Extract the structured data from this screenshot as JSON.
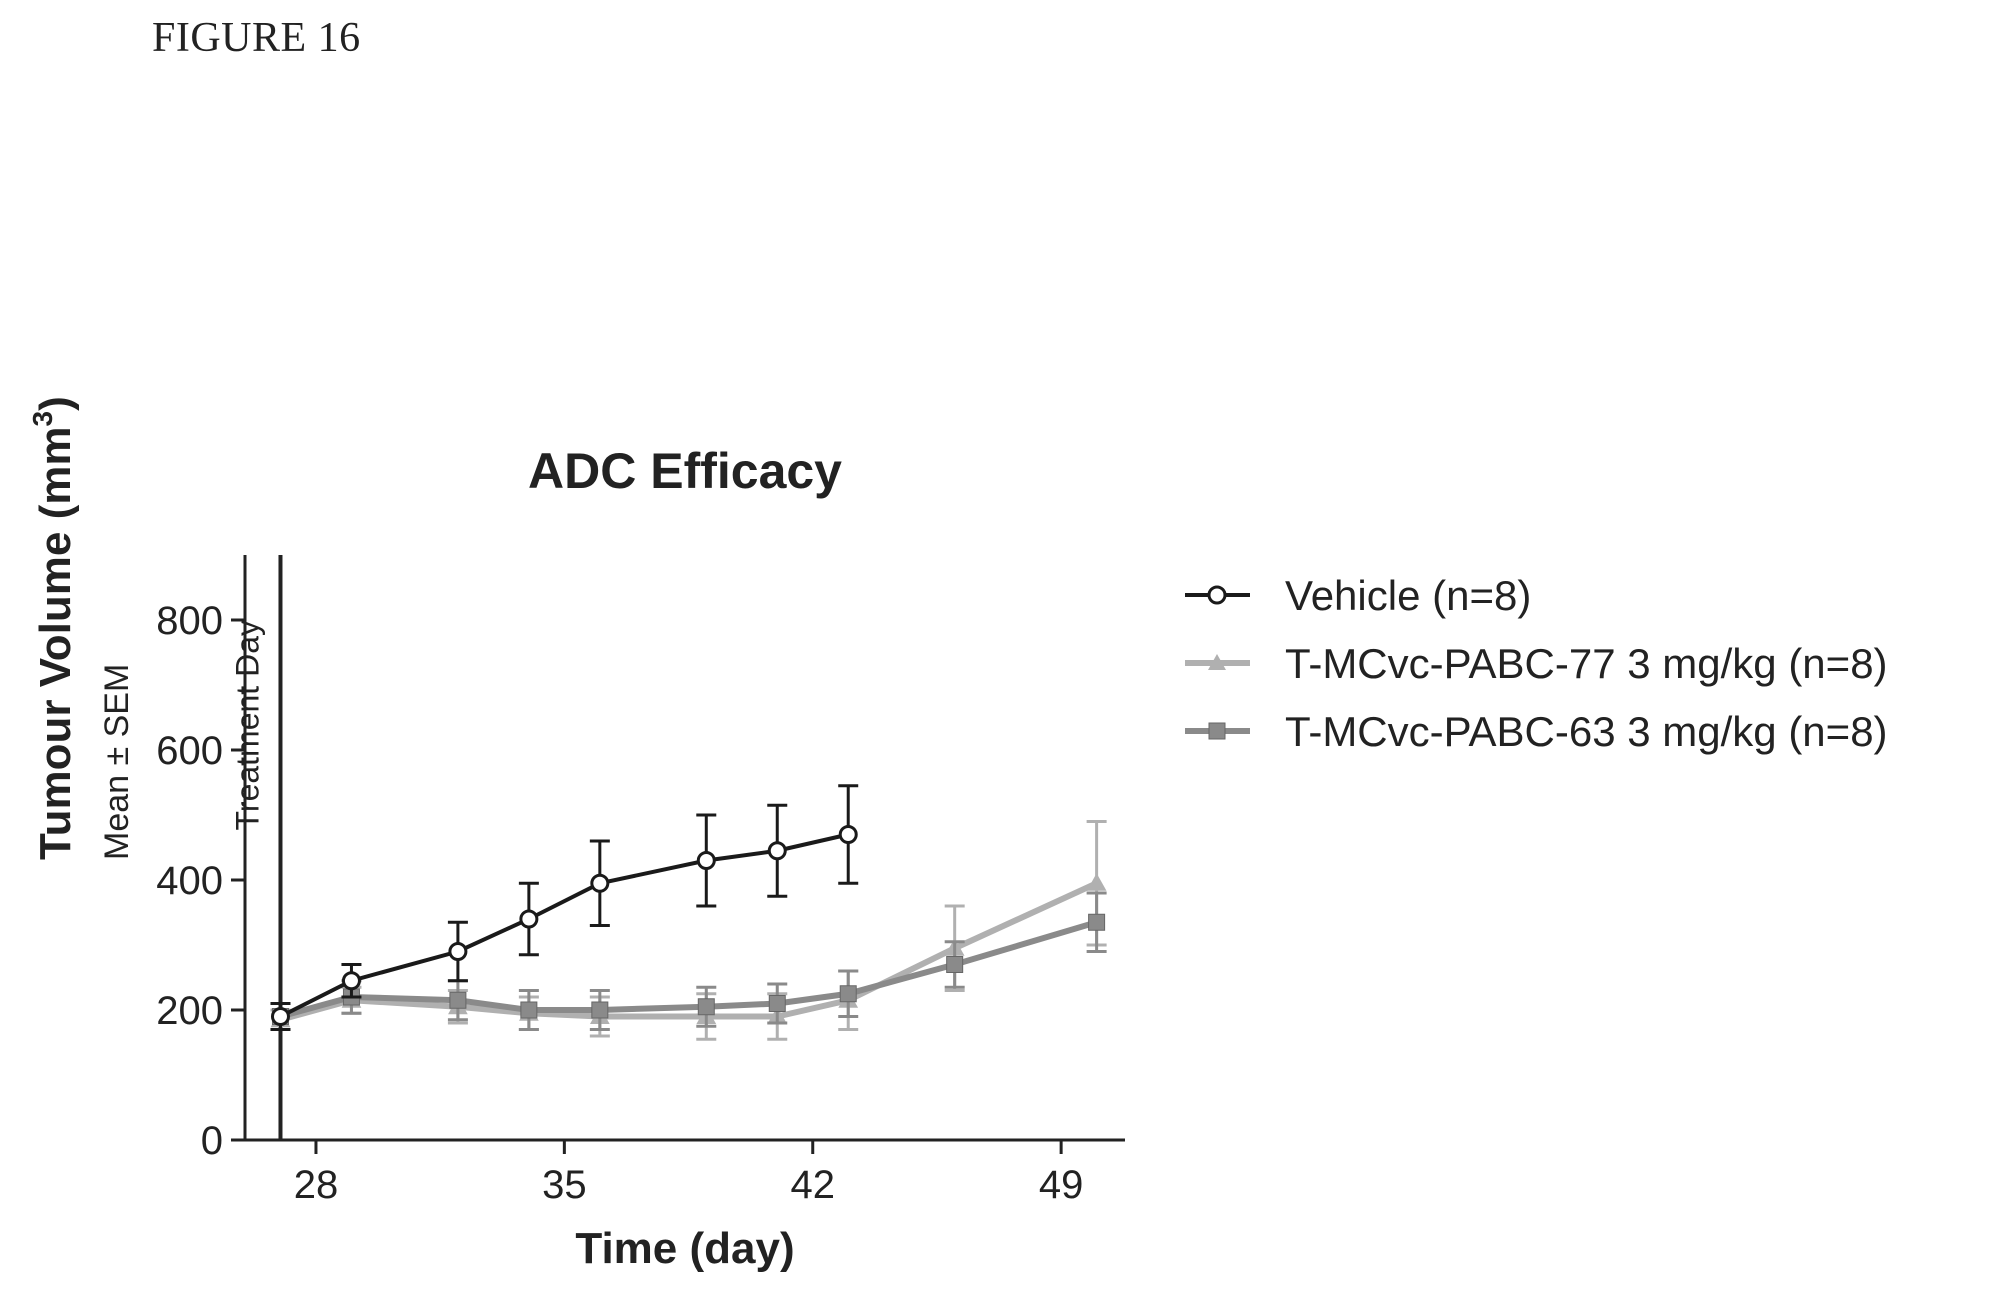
{
  "figure_label": "FIGURE 16",
  "chart_data": {
    "type": "line",
    "title": "ADC  Efficacy",
    "xlabel": "Time (day)",
    "ylabel": "Tumour Volume (mm",
    "ylabel_sup": "3",
    "ylabel_close": ")",
    "ylabel_sub": "Mean ± SEM",
    "xlim": [
      26,
      50.8
    ],
    "ylim": [
      0,
      900
    ],
    "xticks": [
      28,
      35,
      42,
      49
    ],
    "yticks": [
      0,
      200,
      400,
      600,
      800
    ],
    "grid": false,
    "legend_position": "right",
    "annotation": {
      "text": "Treatment Day",
      "x": 27
    },
    "series": [
      {
        "name": "Vehicle (n=8)",
        "color": "#1a1a1a",
        "marker": "circle",
        "x": [
          27,
          29,
          32,
          34,
          36,
          39,
          41,
          43
        ],
        "y": [
          190,
          245,
          290,
          340,
          395,
          430,
          445,
          470
        ],
        "err": [
          20,
          25,
          45,
          55,
          65,
          70,
          70,
          75
        ]
      },
      {
        "name": "T-MCvc-PABC-77 3 mg/kg (n=8)",
        "color": "#b0b0b0",
        "marker": "triangle",
        "x": [
          27,
          29,
          32,
          34,
          36,
          39,
          41,
          43,
          46,
          50
        ],
        "y": [
          185,
          215,
          205,
          195,
          190,
          190,
          190,
          215,
          295,
          395
        ],
        "err": [
          15,
          20,
          25,
          25,
          30,
          35,
          35,
          45,
          65,
          95
        ]
      },
      {
        "name": "T-MCvc-PABC-63 3 mg/kg (n=8)",
        "color": "#8a8a8a",
        "marker": "hatched",
        "x": [
          27,
          29,
          32,
          34,
          36,
          39,
          41,
          43,
          46,
          50
        ],
        "y": [
          190,
          220,
          215,
          200,
          200,
          205,
          210,
          225,
          270,
          335
        ],
        "err": [
          20,
          25,
          30,
          30,
          30,
          30,
          30,
          35,
          35,
          45
        ]
      }
    ]
  }
}
